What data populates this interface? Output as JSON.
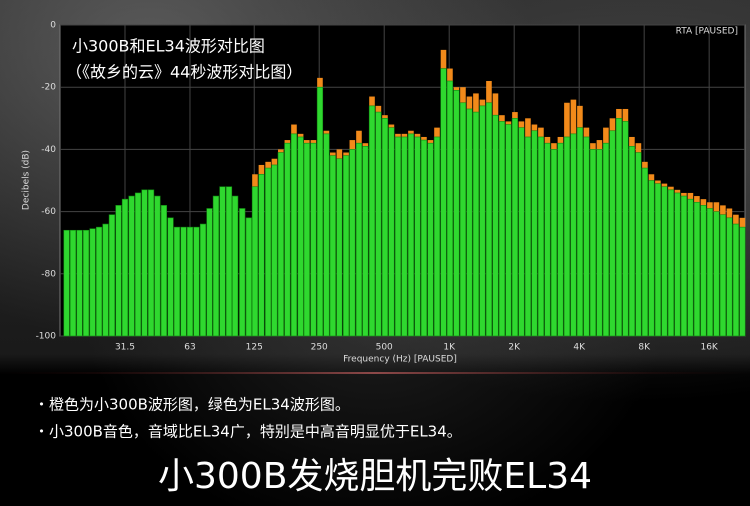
{
  "chart_data": {
    "type": "bar",
    "title": "小300B和EL34波形对比图",
    "subtitle": "（《故乡的云》44秒波形对比图）",
    "status": "RTA [PAUSED]",
    "x_label": "Frequency (Hz) [PAUSED]",
    "y_label": "Decibels (dB)",
    "xscale": "log",
    "xlim": [
      15.75,
      23450
    ],
    "xticks": [
      31.5,
      63,
      125,
      250,
      500,
      {
        "value": 1000,
        "label": "1K"
      },
      {
        "value": 2000,
        "label": "2K"
      },
      {
        "value": 4000,
        "label": "4K"
      },
      {
        "value": 8000,
        "label": "8K"
      },
      {
        "value": 16000,
        "label": "16K"
      }
    ],
    "ylim": [
      -100,
      0
    ],
    "yticks": [
      -100,
      -80,
      -60,
      -40,
      -20,
      0
    ],
    "grid": true,
    "x": [
      16.9,
      18.1,
      19.4,
      20.8,
      22.3,
      23.9,
      25.6,
      27.4,
      29.4,
      31.5,
      33.8,
      36.2,
      38.8,
      41.6,
      44.5,
      47.7,
      51.2,
      54.8,
      58.8,
      63,
      67.5,
      72.4,
      77.6,
      83.1,
      89.1,
      95.5,
      102,
      110,
      118,
      126,
      135,
      145,
      155,
      166,
      178,
      191,
      205,
      219,
      235,
      252,
      270,
      289,
      310,
      333,
      356,
      382,
      409,
      439,
      470,
      504,
      540,
      579,
      620,
      665,
      713,
      764,
      819,
      878,
      941,
      1008,
      1080,
      1158,
      1241,
      1330,
      1425,
      1528,
      1638,
      1755,
      1881,
      2016,
      2161,
      2316,
      2482,
      2660,
      2851,
      3056,
      3275,
      3510,
      3762,
      4032,
      4321,
      4632,
      4964,
      5320,
      5702,
      6111,
      6550,
      7020,
      7524,
      8064,
      8643,
      9263,
      9928,
      10640,
      11404,
      12223,
      13100,
      14040,
      15048,
      16128,
      17286,
      18526,
      19856,
      21280,
      22808
    ],
    "series": [
      {
        "color": "#f28a1a",
        "values": [
          -67,
          -67,
          -67,
          -67,
          -66.5,
          -66,
          -65,
          -62,
          -59,
          -57,
          -56,
          -55,
          -54,
          -54,
          -56,
          -59,
          -63,
          -66,
          -66,
          -66,
          -66,
          -65,
          -60,
          -56,
          -53,
          -53,
          -56,
          -60,
          -63,
          -48,
          -45,
          -44,
          -43,
          -40,
          -37,
          -32,
          -35,
          -37,
          -37,
          -17,
          -34,
          -41,
          -40,
          -41,
          -37,
          -34,
          -38,
          -23,
          -26,
          -29,
          -32,
          -35,
          -35,
          -34,
          -35,
          -36,
          -37,
          -33,
          -8,
          -14,
          -20,
          -20,
          -23,
          -22,
          -24,
          -18,
          -22,
          -29,
          -31,
          -28,
          -31,
          -30,
          -32,
          -33,
          -36,
          -38,
          -36,
          -25,
          -24,
          -26,
          -33,
          -38,
          -37,
          -33,
          -30,
          -27,
          -27,
          -36,
          -38,
          -44,
          -48,
          -50,
          -51,
          -52,
          -53,
          -54,
          -54,
          -55,
          -56,
          -57,
          -57,
          -58,
          -59,
          -61,
          -62
        ]
      },
      {
        "color": "#2fd82f",
        "values": [
          -66,
          -66,
          -66,
          -66,
          -65.5,
          -65,
          -64,
          -61,
          -58,
          -56,
          -55,
          -54,
          -53,
          -53,
          -55,
          -58,
          -62,
          -65,
          -65,
          -65,
          -65,
          -64,
          -59,
          -55,
          -52,
          -52,
          -55,
          -59,
          -62,
          -52,
          -48,
          -46,
          -45,
          -41,
          -38,
          -35,
          -36,
          -38,
          -38,
          -20,
          -35,
          -42,
          -43,
          -42,
          -40,
          -38,
          -39,
          -26,
          -28,
          -30,
          -33,
          -36,
          -36,
          -35,
          -36,
          -37,
          -38,
          -36,
          -14,
          -18,
          -21,
          -25,
          -27,
          -28,
          -26,
          -25,
          -29,
          -31,
          -32,
          -30,
          -33,
          -36,
          -34,
          -36,
          -38,
          -40,
          -38,
          -36,
          -35,
          -33,
          -36,
          -40,
          -40,
          -38,
          -34,
          -30,
          -31,
          -39,
          -41,
          -46,
          -50,
          -51,
          -52,
          -53,
          -54,
          -55,
          -56,
          -57,
          -58,
          -59,
          -60,
          -61,
          -62,
          -64,
          -65
        ]
      }
    ]
  },
  "notes": [
    "・橙色为小300B波形图，绿色为EL34波形图。",
    "・小300B音色，音域比EL34广，特别是中高音明显优于EL34。"
  ],
  "headline": "小300B发烧胆机完败EL34"
}
